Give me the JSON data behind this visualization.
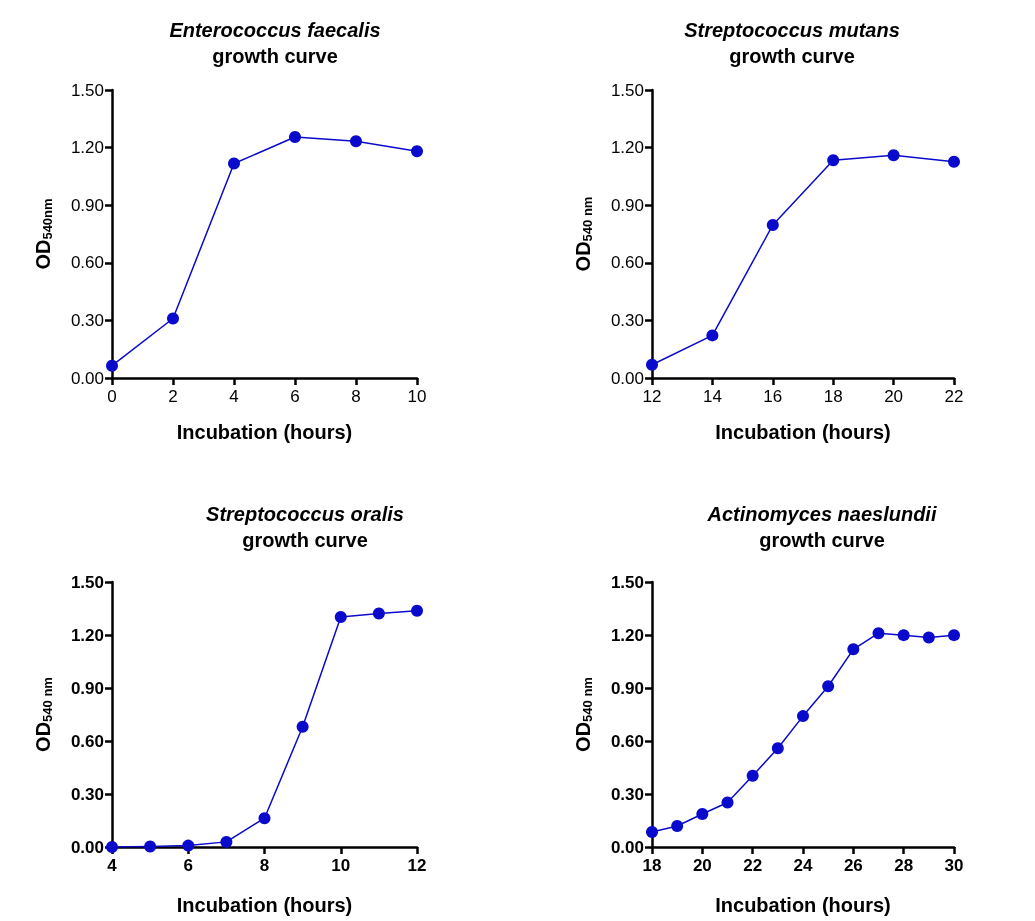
{
  "chart_data": [
    {
      "type": "line",
      "title": "Enterococcus faecalis\ngrowth curve",
      "xlabel": "Incubation (hours)",
      "ylabel": "OD$_{540nm}$",
      "x": [
        0,
        2,
        4,
        6,
        8,
        10
      ],
      "series": [
        {
          "color": "#0a0acc",
          "values": [
            0.064,
            0.31,
            1.117,
            1.255,
            1.233,
            1.181
          ]
        }
      ],
      "xlim": [
        0,
        10
      ],
      "xticks": [
        0,
        2,
        4,
        6,
        8,
        10
      ],
      "ylim": [
        0,
        1.5
      ],
      "yticks": [
        {
          "value": 0,
          "label": "0.00"
        },
        {
          "value": 0.3,
          "label": "0.30"
        },
        {
          "value": 0.6,
          "label": "0.60"
        },
        {
          "value": 0.9,
          "label": "0.90"
        },
        {
          "value": 1.2,
          "label": "1.20"
        },
        {
          "value": 1.5,
          "label": "1.50"
        }
      ],
      "grid": false,
      "marker": "circle",
      "line_style": "solid"
    },
    {
      "type": "line",
      "title": "Streptococcus mutans\ngrowth curve",
      "xlabel": "Incubation (hours)",
      "ylabel": "OD$_{540 nm}$",
      "x": [
        12,
        14,
        16,
        18,
        20,
        22
      ],
      "series": [
        {
          "color": "#0a0acc",
          "values": [
            0.069,
            0.222,
            0.797,
            1.134,
            1.16,
            1.126
          ]
        }
      ],
      "xlim": [
        12,
        22
      ],
      "xticks": [
        12,
        14,
        16,
        18,
        20,
        22
      ],
      "ylim": [
        0,
        1.5
      ],
      "yticks": [
        {
          "value": 0,
          "label": "0.00"
        },
        {
          "value": 0.3,
          "label": "0.30"
        },
        {
          "value": 0.6,
          "label": "0.60"
        },
        {
          "value": 0.9,
          "label": "0.90"
        },
        {
          "value": 1.2,
          "label": "1.20"
        },
        {
          "value": 1.5,
          "label": "1.50"
        }
      ],
      "grid": false,
      "marker": "circle",
      "line_style": "solid"
    },
    {
      "type": "line",
      "title": "Streptococcus oralis\ngrowth curve",
      "xlabel": "Incubation (hours)",
      "ylabel": "OD$_{540 nm}$",
      "x": [
        4,
        5,
        6,
        7,
        8,
        9,
        10,
        11,
        12
      ],
      "series": [
        {
          "color": "#0a0acc",
          "values": [
            0,
            0.003,
            0.008,
            0.029,
            0.163,
            0.681,
            1.302,
            1.322,
            1.337
          ]
        }
      ],
      "xlim": [
        4,
        12
      ],
      "xticks": [
        4,
        6,
        8,
        10,
        12
      ],
      "ylim": [
        0,
        1.5
      ],
      "yticks": [
        {
          "value": 0,
          "label": "0.00"
        },
        {
          "value": 0.3,
          "label": "0.30"
        },
        {
          "value": 0.6,
          "label": "0.60"
        },
        {
          "value": 0.9,
          "label": "0.90"
        },
        {
          "value": 1.2,
          "label": "1.20"
        },
        {
          "value": 1.5,
          "label": "1.50"
        }
      ],
      "grid": false,
      "marker": "circle",
      "line_style": "solid"
    },
    {
      "type": "line",
      "title": "Actinomyces naeslundii\ngrowth curve",
      "xlabel": "Incubation (hours)",
      "ylabel": "OD$_{540 nm}$",
      "x": [
        18,
        19,
        20,
        21,
        22,
        23,
        24,
        25,
        26,
        27,
        28,
        29,
        30
      ],
      "series": [
        {
          "color": "#0a0acc",
          "values": [
            0.085,
            0.119,
            0.187,
            0.252,
            0.403,
            0.559,
            0.741,
            0.91,
            1.119,
            1.21,
            1.199,
            1.186,
            1.199
          ]
        }
      ],
      "xlim": [
        18,
        30
      ],
      "xticks": [
        18,
        20,
        22,
        24,
        26,
        28,
        30
      ],
      "ylim": [
        0,
        1.5
      ],
      "yticks": [
        {
          "value": 0,
          "label": "0.00"
        },
        {
          "value": 0.3,
          "label": "0.30"
        },
        {
          "value": 0.6,
          "label": "0.60"
        },
        {
          "value": 0.9,
          "label": "0.90"
        },
        {
          "value": 1.2,
          "label": "1.20"
        },
        {
          "value": 1.5,
          "label": "1.50"
        }
      ],
      "grid": false,
      "marker": "circle",
      "line_style": "solid"
    }
  ]
}
